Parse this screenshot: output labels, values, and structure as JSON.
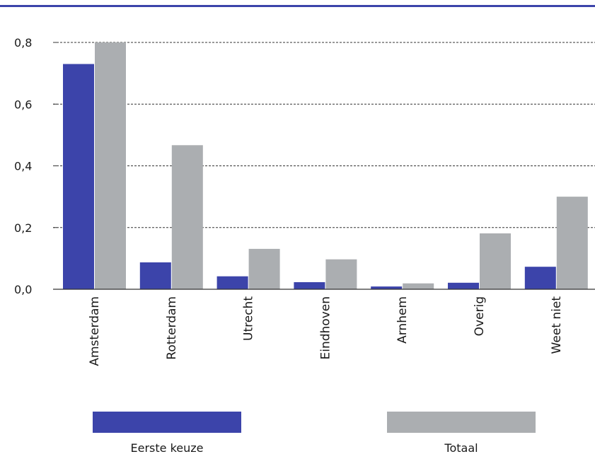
{
  "colors": {
    "header_rule": "#3c44aa",
    "gridline": "#333333",
    "axis": "#333333"
  },
  "chart_data": {
    "type": "bar",
    "title": "",
    "xlabel": "",
    "ylabel": "",
    "categories": [
      "Amsterdam",
      "Rotterdam",
      "Utrecht",
      "Eindhoven",
      "Arnhem",
      "Overig",
      "Weet niet"
    ],
    "series": [
      {
        "name": "Eerste keuze",
        "color": "#3c44aa",
        "values": [
          0.73,
          0.087,
          0.042,
          0.023,
          0.009,
          0.021,
          0.073
        ]
      },
      {
        "name": "Totaal",
        "color": "#abaeb1",
        "values": [
          0.8,
          0.467,
          0.131,
          0.097,
          0.019,
          0.181,
          0.3
        ]
      }
    ],
    "ylim": [
      0,
      0.8
    ],
    "yticks": [
      0.0,
      0.2,
      0.4,
      0.6,
      0.8
    ],
    "ytick_labels": [
      "0,0",
      "0,2",
      "0,4",
      "0,6",
      "0,8"
    ],
    "grid": true,
    "legend": "bottom"
  }
}
